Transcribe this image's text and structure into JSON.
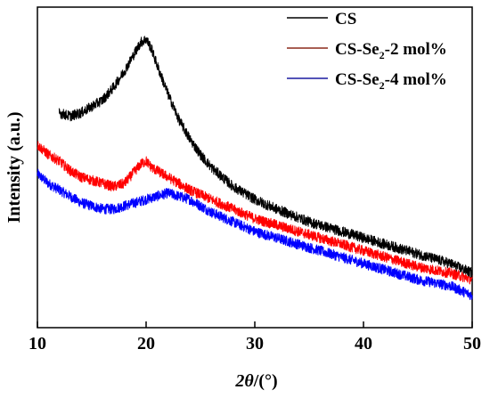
{
  "chart_data": {
    "type": "line",
    "xlabel_symbol": "2θ",
    "xlabel_unit": "/(°)",
    "ylabel": "Intensity (a.u.)",
    "xlim": [
      10,
      50
    ],
    "xticks": [
      "10",
      "20",
      "30",
      "40",
      "50"
    ],
    "ylim": [
      0,
      100
    ],
    "legend_position": "top-right",
    "series": [
      {
        "name": "CS",
        "name_parts": [
          "CS",
          "",
          ""
        ],
        "color": "#000000",
        "x": [
          12.0,
          13.0,
          14.0,
          15.0,
          16.0,
          17.0,
          18.0,
          19.0,
          19.5,
          20.0,
          20.5,
          21.0,
          22.0,
          23.0,
          24.0,
          25.0,
          26.0,
          27.0,
          28.0,
          30.0,
          32.0,
          35.0,
          38.0,
          40.0,
          42.0,
          45.0,
          48.0,
          50.0
        ],
        "y": [
          67,
          66,
          67,
          69,
          71,
          75,
          80,
          86,
          89,
          90,
          87,
          82,
          73,
          65,
          59,
          54,
          50,
          47,
          44,
          40,
          37,
          33,
          30,
          28,
          26,
          23,
          20,
          17
        ]
      },
      {
        "name": "CS-Se2-2 mol%",
        "name_parts": [
          "CS-Se",
          "2",
          "-2 mol%"
        ],
        "color": "#ff0000",
        "x": [
          10.0,
          11.0,
          12.0,
          13.0,
          14.0,
          15.0,
          16.0,
          17.0,
          18.0,
          19.0,
          19.5,
          20.0,
          20.5,
          21.0,
          22.0,
          23.0,
          24.0,
          26.0,
          28.0,
          30.0,
          32.0,
          35.0,
          38.0,
          40.0,
          42.0,
          45.0,
          48.0,
          50.0
        ],
        "y": [
          57,
          54,
          52,
          49,
          47,
          46,
          45,
          44,
          45,
          49,
          51,
          52,
          50,
          49,
          47,
          45,
          43,
          40,
          37,
          34,
          32,
          29,
          26,
          24,
          22,
          19,
          17,
          15
        ]
      },
      {
        "name": "CS-Se2-4 mol%",
        "name_parts": [
          "CS-Se",
          "2",
          "-4 mol%"
        ],
        "color": "#0000ff",
        "x": [
          10.0,
          11.0,
          12.0,
          13.0,
          14.0,
          15.0,
          16.0,
          17.0,
          18.0,
          19.0,
          20.0,
          21.0,
          22.0,
          23.0,
          24.0,
          25.0,
          26.0,
          28.0,
          30.0,
          32.0,
          35.0,
          38.0,
          40.0,
          42.0,
          45.0,
          48.0,
          50.0
        ],
        "y": [
          48,
          45,
          43,
          41,
          39,
          38,
          37,
          37,
          38,
          39,
          40,
          41,
          42,
          41,
          40,
          38,
          36,
          33,
          30,
          28,
          25,
          22,
          20,
          18,
          15,
          13,
          10
        ]
      }
    ]
  },
  "legend": {
    "line_colors": [
      "#000000",
      "#8b2a1a",
      "#1a1aa0"
    ]
  }
}
